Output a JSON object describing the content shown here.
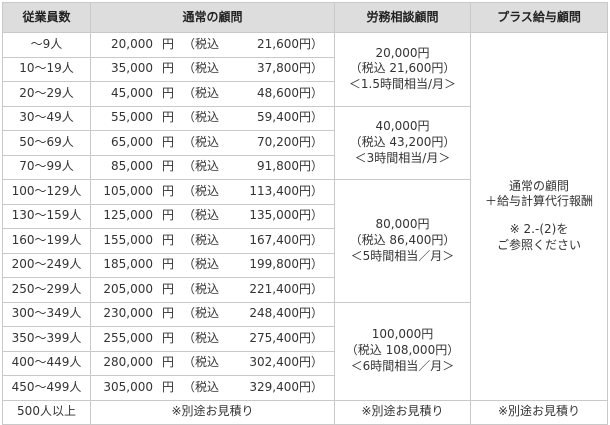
{
  "header": {
    "employees": "従業員数",
    "regular": "通常の顧問",
    "labor": "労務相談顧問",
    "plus": "プラス給与顧問"
  },
  "rows": [
    {
      "employees": "～9人",
      "amount": "20,000",
      "yen": "円",
      "tax_label": "（税込",
      "tax_amount": "21,600",
      "tax_yen": "円）"
    },
    {
      "employees": "10～19人",
      "amount": "35,000",
      "yen": "円",
      "tax_label": "（税込",
      "tax_amount": "37,800",
      "tax_yen": "円）"
    },
    {
      "employees": "20～29人",
      "amount": "45,000",
      "yen": "円",
      "tax_label": "（税込",
      "tax_amount": "48,600",
      "tax_yen": "円）"
    },
    {
      "employees": "30～49人",
      "amount": "55,000",
      "yen": "円",
      "tax_label": "（税込",
      "tax_amount": "59,400",
      "tax_yen": "円）"
    },
    {
      "employees": "50～69人",
      "amount": "65,000",
      "yen": "円",
      "tax_label": "（税込",
      "tax_amount": "70,200",
      "tax_yen": "円）"
    },
    {
      "employees": "70～99人",
      "amount": "85,000",
      "yen": "円",
      "tax_label": "（税込",
      "tax_amount": "91,800",
      "tax_yen": "円）"
    },
    {
      "employees": "100～129人",
      "amount": "105,000",
      "yen": "円",
      "tax_label": "（税込",
      "tax_amount": "113,400",
      "tax_yen": "円）"
    },
    {
      "employees": "130～159人",
      "amount": "125,000",
      "yen": "円",
      "tax_label": "（税込",
      "tax_amount": "135,000",
      "tax_yen": "円）"
    },
    {
      "employees": "160～199人",
      "amount": "155,000",
      "yen": "円",
      "tax_label": "（税込",
      "tax_amount": "167,400",
      "tax_yen": "円）"
    },
    {
      "employees": "200～249人",
      "amount": "185,000",
      "yen": "円",
      "tax_label": "（税込",
      "tax_amount": "199,800",
      "tax_yen": "円）"
    },
    {
      "employees": "250～299人",
      "amount": "205,000",
      "yen": "円",
      "tax_label": "（税込",
      "tax_amount": "221,400",
      "tax_yen": "円）"
    },
    {
      "employees": "300～349人",
      "amount": "230,000",
      "yen": "円",
      "tax_label": "（税込",
      "tax_amount": "248,400",
      "tax_yen": "円）"
    },
    {
      "employees": "350～399人",
      "amount": "255,000",
      "yen": "円",
      "tax_label": "（税込",
      "tax_amount": "275,400",
      "tax_yen": "円）"
    },
    {
      "employees": "400～449人",
      "amount": "280,000",
      "yen": "円",
      "tax_label": "（税込",
      "tax_amount": "302,400",
      "tax_yen": "円）"
    },
    {
      "employees": "450～499人",
      "amount": "305,000",
      "yen": "円",
      "tax_label": "（税込",
      "tax_amount": "329,400",
      "tax_yen": "円）"
    }
  ],
  "labor_groups": [
    {
      "price": "20,000円",
      "tax": "（税込 21,600円）",
      "hours": "＜1.5時間相当/月＞"
    },
    {
      "price": "40,000円",
      "tax": "（税込 43,200円）",
      "hours": "＜3時間相当/月＞"
    },
    {
      "price": "80,000円",
      "tax": "（税込 86,400円）",
      "hours": "＜5時間相当／月＞"
    },
    {
      "price": "100,000円",
      "tax": "（税込 108,000円）",
      "hours": "＜6時間相当／月＞"
    }
  ],
  "plus": {
    "line1": "通常の顧問",
    "line2": "＋給与計算代行報酬",
    "note1": "※ 2.-(2)を",
    "note2": "ご参照ください"
  },
  "footer": {
    "employees": "500人以上",
    "regular": "※別途お見積り",
    "labor": "※別途お見積り",
    "plus": "※別途お見積り"
  },
  "colors": {
    "header_bg": "#dddddd",
    "border": "#c9c9c9",
    "text": "#333333"
  }
}
